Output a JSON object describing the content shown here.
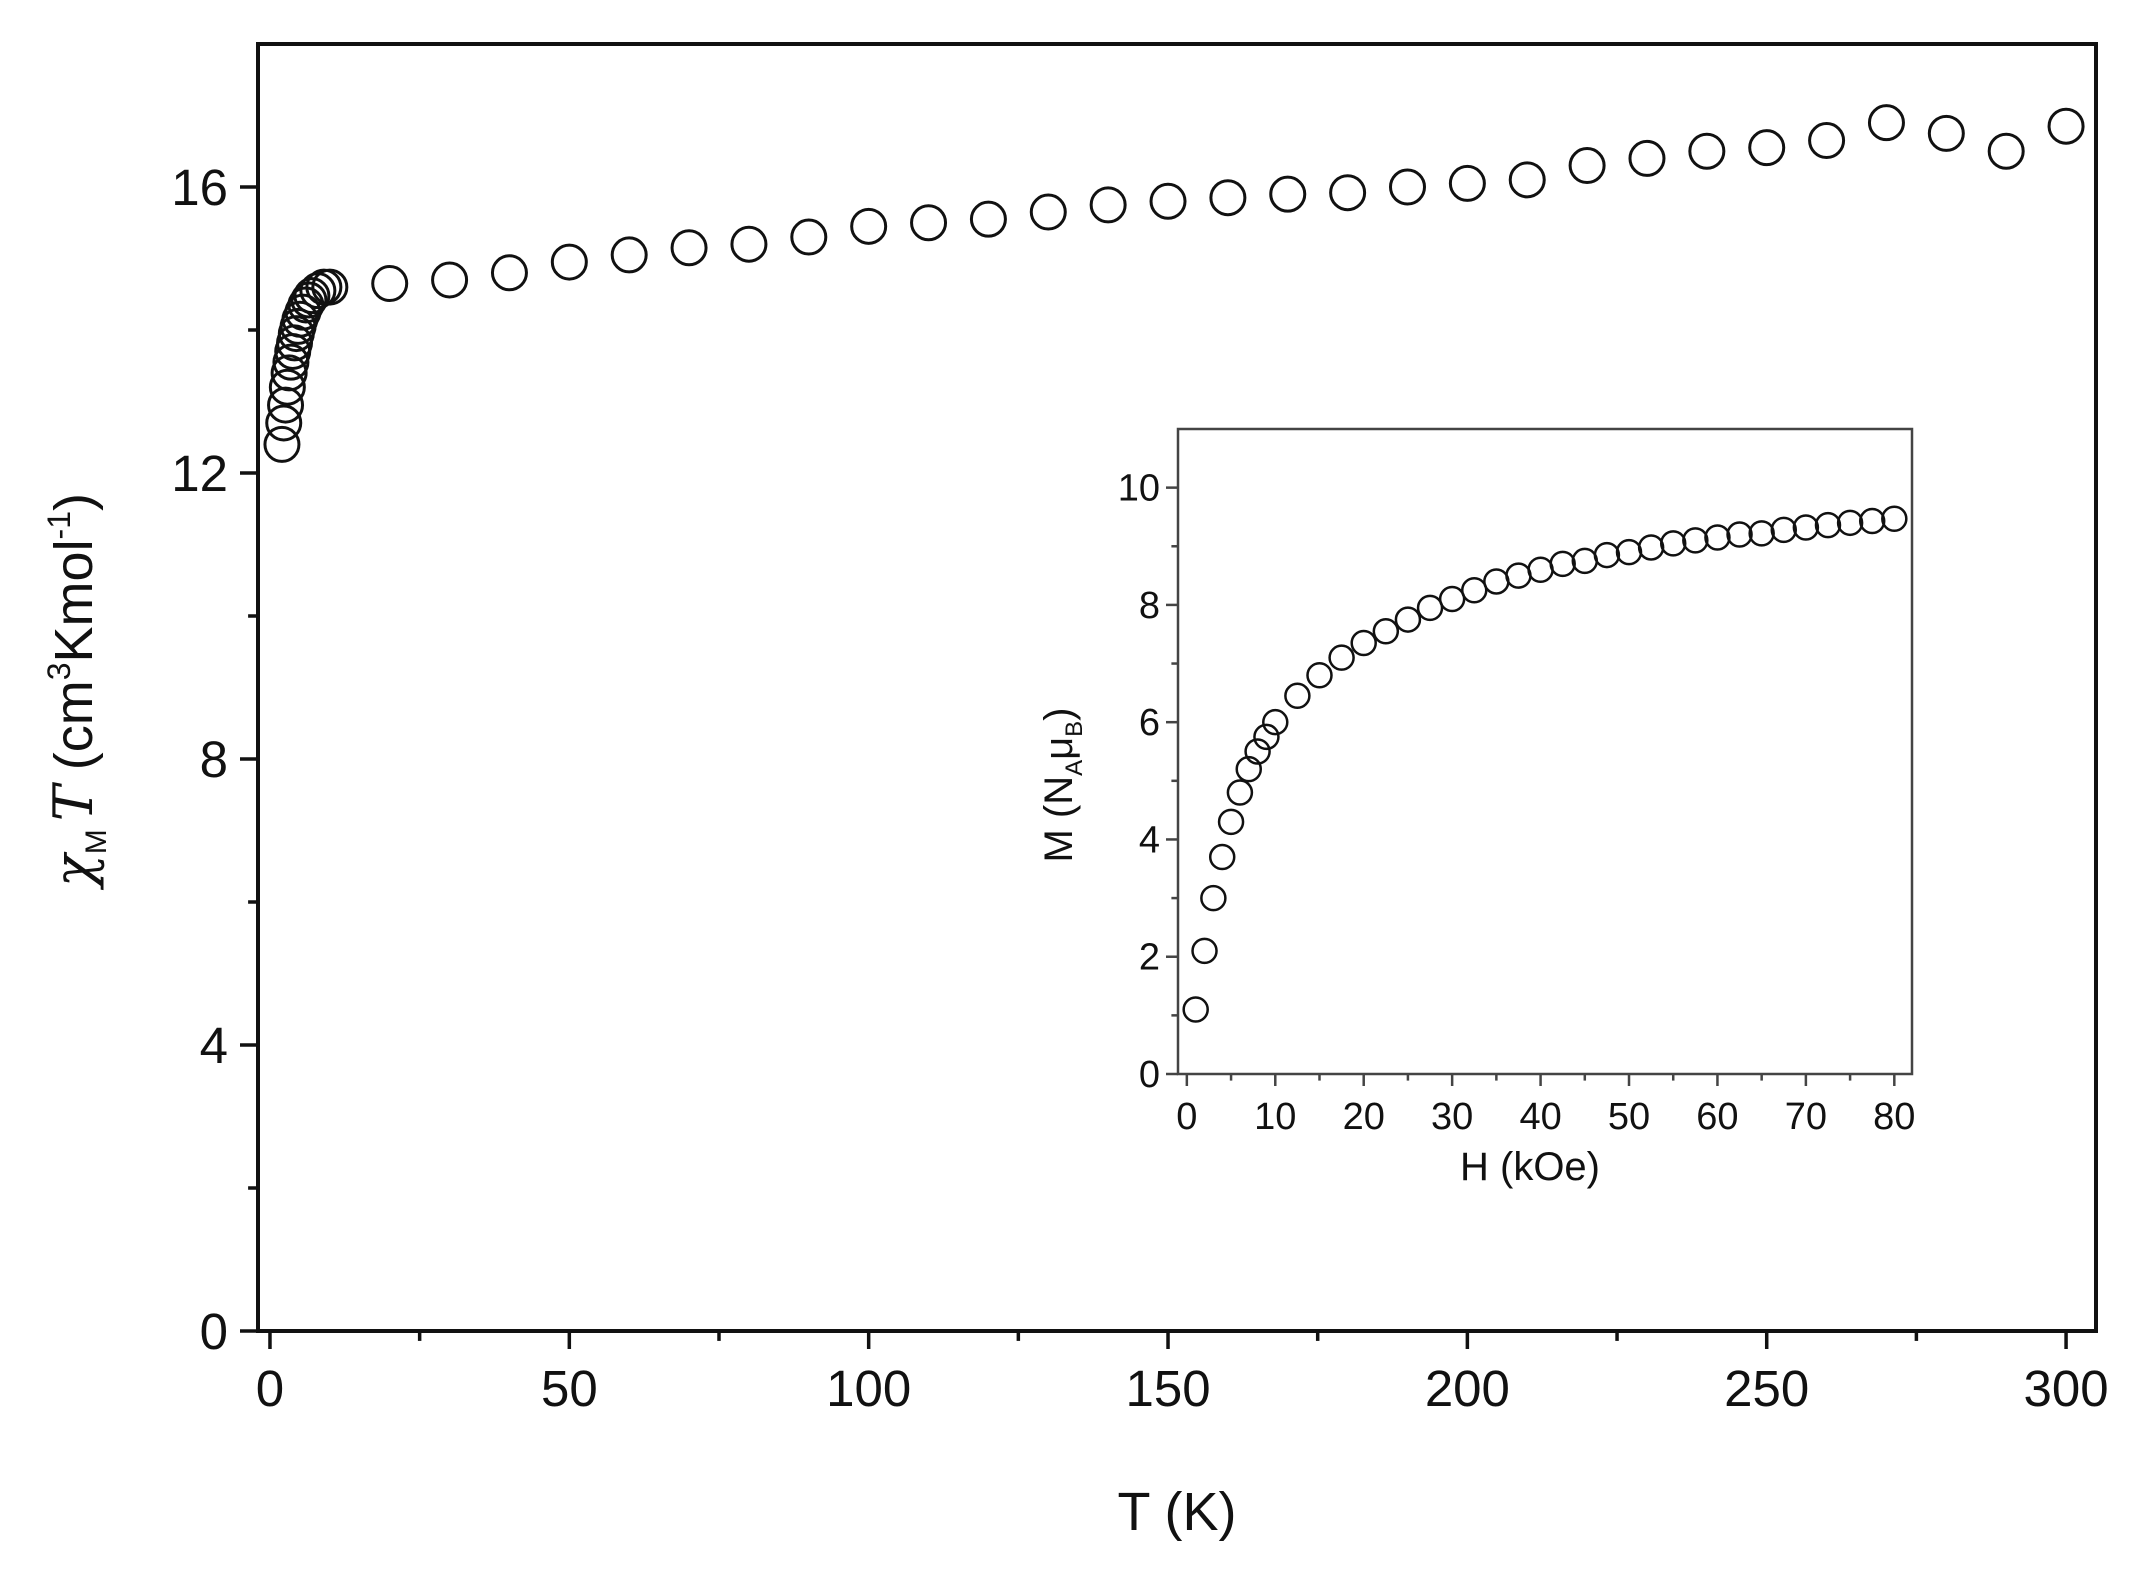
{
  "chart_data": [
    {
      "type": "scatter",
      "name": "main",
      "xlabel": "T (K)",
      "ylabel_parts": {
        "chi": "χ",
        "sub": "M",
        "T": "T",
        "open": " (cm",
        "sup3": "3",
        "mid": "Kmol",
        "supneg": "-1",
        "close": ")"
      },
      "xlim": [
        -2,
        305
      ],
      "ylim": [
        0,
        18
      ],
      "xticks": [
        0,
        50,
        100,
        150,
        200,
        250,
        300
      ],
      "yticks": [
        0,
        4,
        8,
        12,
        16
      ],
      "xtick_labels": [
        "0",
        "50",
        "100",
        "150",
        "200",
        "250",
        "300"
      ],
      "ytick_labels": [
        "0",
        "4",
        "8",
        "12",
        "16"
      ],
      "marker": "open-circle",
      "x": [
        2.0,
        2.3,
        2.6,
        2.9,
        3.2,
        3.5,
        3.8,
        4.1,
        4.4,
        4.7,
        5.0,
        5.5,
        6.0,
        6.5,
        7.0,
        8.0,
        9.0,
        10.0,
        20,
        30,
        40,
        50,
        60,
        70,
        80,
        90,
        100,
        110,
        120,
        130,
        140,
        150,
        160,
        170,
        180,
        190,
        200,
        210,
        220,
        230,
        240,
        250,
        260,
        270,
        280,
        290,
        300
      ],
      "y": [
        12.4,
        12.7,
        12.95,
        13.2,
        13.4,
        13.55,
        13.7,
        13.82,
        13.95,
        14.05,
        14.15,
        14.25,
        14.35,
        14.42,
        14.48,
        14.55,
        14.6,
        14.6,
        14.65,
        14.7,
        14.8,
        14.95,
        15.05,
        15.15,
        15.2,
        15.3,
        15.45,
        15.5,
        15.55,
        15.65,
        15.75,
        15.8,
        15.85,
        15.9,
        15.92,
        16.0,
        16.05,
        16.1,
        16.3,
        16.4,
        16.5,
        16.55,
        16.65,
        16.9,
        16.75,
        16.5,
        16.85
      ]
    },
    {
      "type": "scatter",
      "name": "inset",
      "xlabel": "H (kOe)",
      "ylabel_parts": {
        "m": "M (N",
        "subA": "A",
        "mu": "μ",
        "subB": "B",
        "close": ")"
      },
      "xlim": [
        -1,
        82
      ],
      "ylim": [
        0,
        11
      ],
      "xticks": [
        0,
        10,
        20,
        30,
        40,
        50,
        60,
        70,
        80
      ],
      "yticks": [
        0,
        2,
        4,
        6,
        8,
        10
      ],
      "xtick_labels": [
        "0",
        "10",
        "20",
        "30",
        "40",
        "50",
        "60",
        "70",
        "80"
      ],
      "ytick_labels": [
        "0",
        "2",
        "4",
        "6",
        "8",
        "10"
      ],
      "marker": "open-circle",
      "x": [
        1,
        2,
        3,
        4,
        5,
        6,
        7,
        8,
        9,
        10,
        12.5,
        15,
        17.5,
        20,
        22.5,
        25,
        27.5,
        30,
        32.5,
        35,
        37.5,
        40,
        42.5,
        45,
        47.5,
        50,
        52.5,
        55,
        57.5,
        60,
        62.5,
        65,
        67.5,
        70,
        72.5,
        75,
        77.5,
        80
      ],
      "y": [
        1.1,
        2.1,
        3.0,
        3.7,
        4.3,
        4.8,
        5.2,
        5.5,
        5.75,
        6.0,
        6.45,
        6.8,
        7.1,
        7.35,
        7.55,
        7.75,
        7.95,
        8.1,
        8.25,
        8.4,
        8.5,
        8.6,
        8.7,
        8.75,
        8.85,
        8.9,
        8.98,
        9.05,
        9.1,
        9.15,
        9.2,
        9.22,
        9.28,
        9.32,
        9.36,
        9.4,
        9.43,
        9.47
      ]
    }
  ]
}
